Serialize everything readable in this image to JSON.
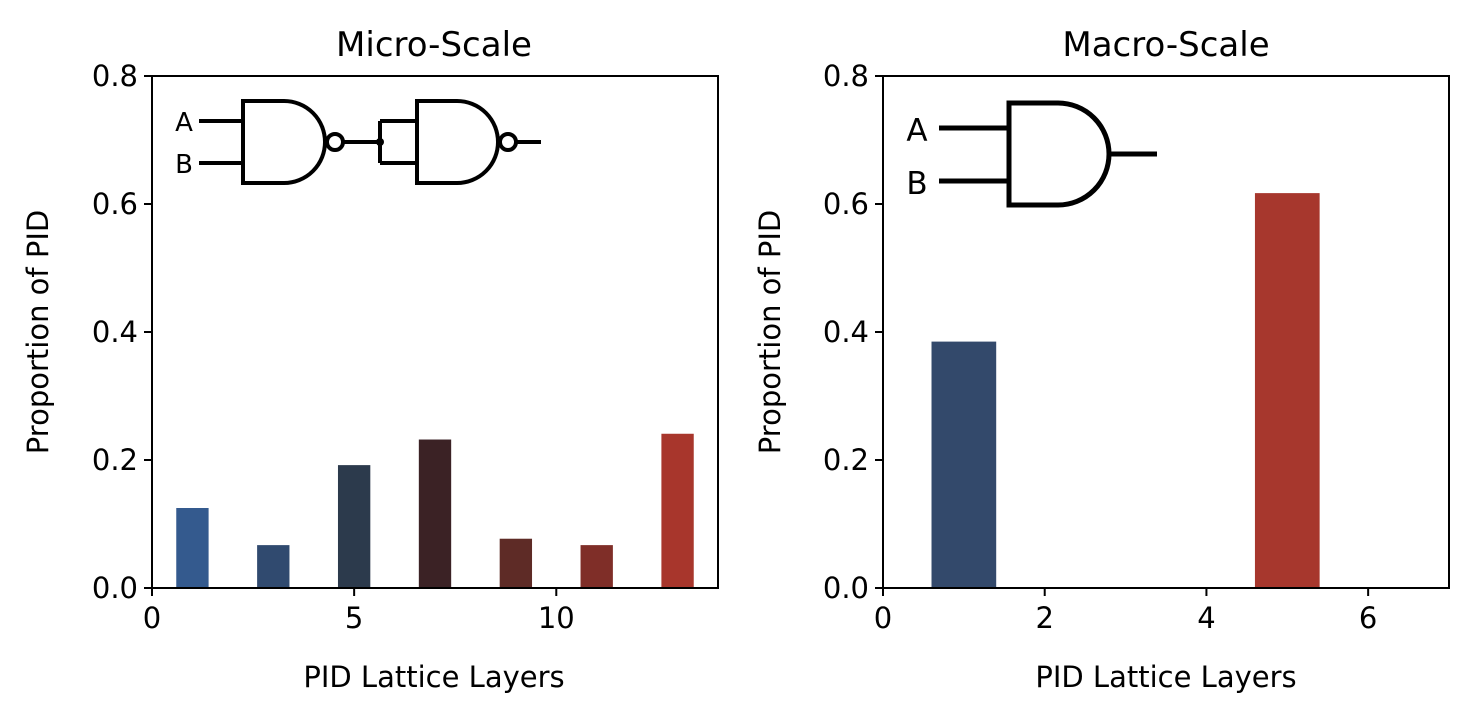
{
  "chart_data": [
    {
      "type": "bar",
      "title": "Micro-Scale",
      "xlabel": "PID Lattice Layers",
      "ylabel": "Proportion of PID",
      "xlim": [
        0,
        14
      ],
      "ylim": [
        0,
        0.8
      ],
      "xticks": [
        0,
        5,
        10
      ],
      "xtick_labels": [
        "0",
        "5",
        "10"
      ],
      "yticks": [
        0.0,
        0.2,
        0.4,
        0.6,
        0.8
      ],
      "ytick_labels": [
        "0.0",
        "0.2",
        "0.4",
        "0.6",
        "0.8"
      ],
      "bar_width": 0.8,
      "x": [
        1,
        3,
        5,
        7,
        9,
        11,
        13
      ],
      "values": [
        0.125,
        0.067,
        0.192,
        0.232,
        0.077,
        0.067,
        0.241
      ],
      "bar_colors": [
        "#345a8e",
        "#304a6f",
        "#2c3a4c",
        "#3b2225",
        "#5e2b26",
        "#7f2e28",
        "#a8362c"
      ],
      "inset": {
        "input_labels": [
          "A",
          "B"
        ],
        "gates": [
          "NAND",
          "NAND"
        ]
      }
    },
    {
      "type": "bar",
      "title": "Macro-Scale",
      "xlabel": "PID Lattice Layers",
      "ylabel": "Proportion of PID",
      "xlim": [
        0,
        7
      ],
      "ylim": [
        0,
        0.8
      ],
      "xticks": [
        0,
        2,
        4,
        6
      ],
      "xtick_labels": [
        "0",
        "2",
        "4",
        "6"
      ],
      "yticks": [
        0.0,
        0.2,
        0.4,
        0.6,
        0.8
      ],
      "ytick_labels": [
        "0.0",
        "0.2",
        "0.4",
        "0.6",
        "0.8"
      ],
      "bar_width": 0.8,
      "x": [
        1,
        5
      ],
      "values": [
        0.385,
        0.617
      ],
      "bar_colors": [
        "#33496b",
        "#a7372d"
      ],
      "inset": {
        "input_labels": [
          "A",
          "B"
        ],
        "gates": [
          "AND"
        ]
      }
    }
  ]
}
